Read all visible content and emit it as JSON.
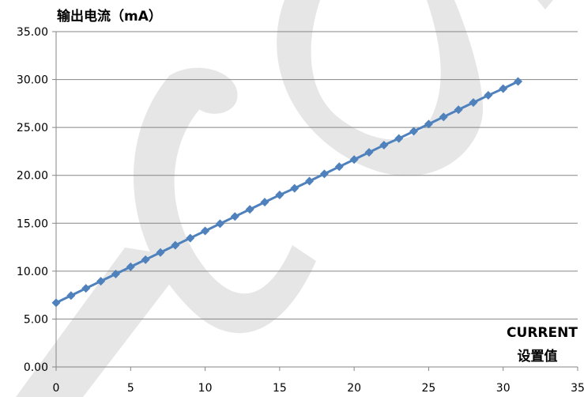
{
  "chart_data": {
    "type": "scatter",
    "ylabel": "输出电流（mA）",
    "xlabel_line1": "CURRENT",
    "xlabel_line2": "设置值",
    "xlim": [
      0,
      35
    ],
    "ylim": [
      0,
      35
    ],
    "xticks": [
      "0",
      "5",
      "10",
      "15",
      "20",
      "25",
      "30",
      "35"
    ],
    "yticks": [
      "0.00",
      "5.00",
      "10.00",
      "15.00",
      "20.00",
      "25.00",
      "30.00",
      "35.00"
    ],
    "grid": "horizontal",
    "series_color": "#4F81BD",
    "series": [
      {
        "x": [
          0,
          1,
          2,
          3,
          4,
          5,
          6,
          7,
          8,
          9,
          10,
          11,
          12,
          13,
          14,
          15,
          16,
          17,
          18,
          19,
          20,
          21,
          22,
          23,
          24,
          25,
          26,
          27,
          28,
          29,
          30,
          31
        ],
        "y": [
          6.7,
          7.45,
          8.2,
          8.95,
          9.7,
          10.45,
          11.2,
          11.95,
          12.7,
          13.45,
          14.2,
          14.95,
          15.7,
          16.45,
          17.2,
          17.95,
          18.65,
          19.4,
          20.15,
          20.9,
          21.65,
          22.4,
          23.15,
          23.85,
          24.6,
          25.35,
          26.1,
          26.85,
          27.6,
          28.35,
          29.05,
          29.8
        ]
      }
    ]
  }
}
